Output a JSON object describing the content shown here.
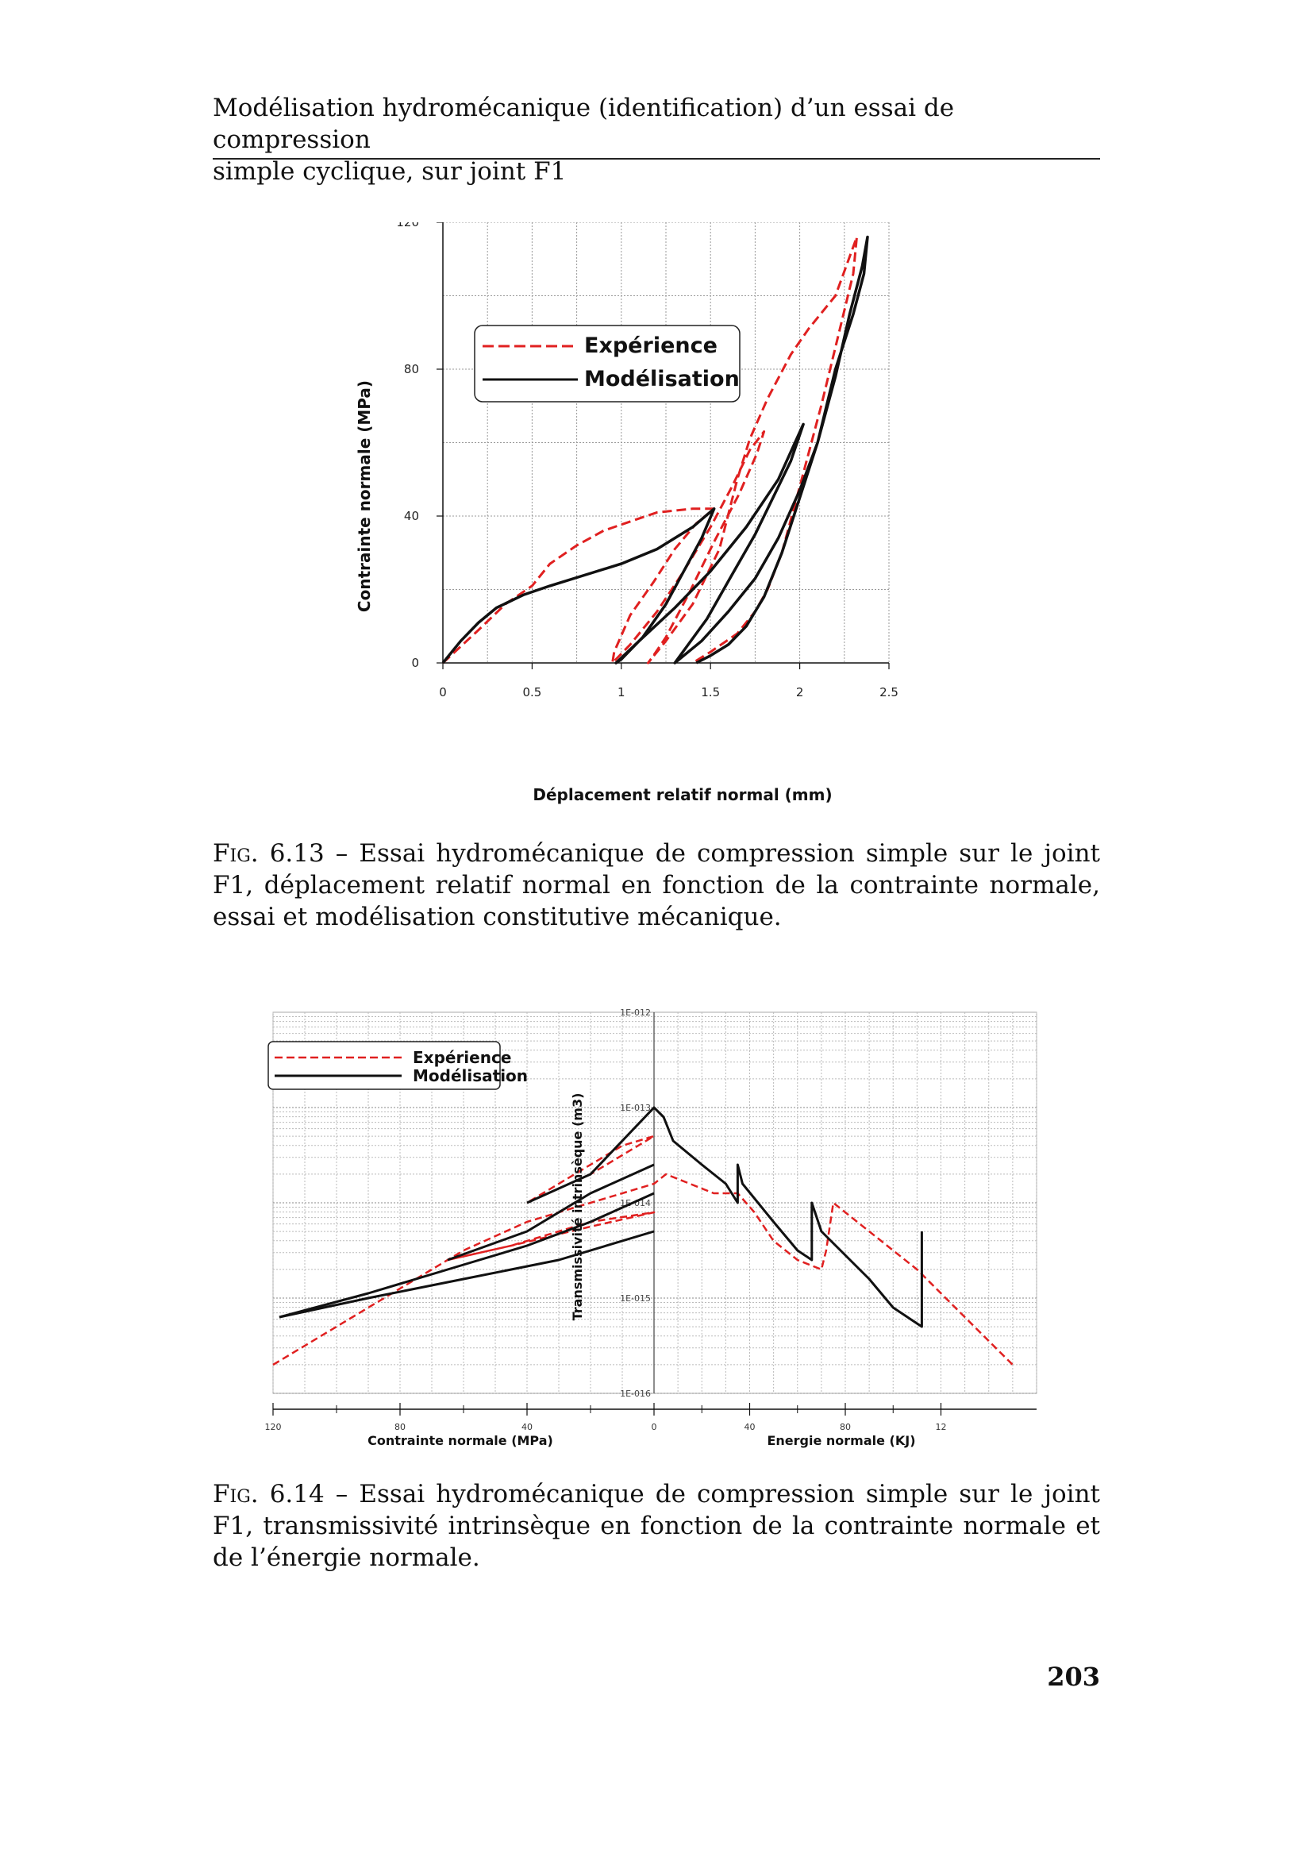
{
  "header": {
    "line1": "Modélisation hydromécanique (identification) d’un essai de compression",
    "line2": "simple cyclique, sur joint F1"
  },
  "figure_6_13": {
    "caption": {
      "label": "Fig. 6.13",
      "text": " – Essai hydromécanique de compression simple sur le joint F1, déplacement relatif normal en fonction de la contrainte normale, essai et modélisation constitutive mécanique."
    },
    "chart_data": {
      "type": "line",
      "xlabel": "Déplacement relatif normal  (mm)",
      "ylabel": "Contrainte normale (MPa)",
      "xlim": [
        0,
        2.5
      ],
      "ylim": [
        0,
        120
      ],
      "x_ticks": [
        "0",
        "0.5",
        "1",
        "1.5",
        "2",
        "2.5"
      ],
      "y_ticks": [
        "0",
        "40",
        "80",
        "120"
      ],
      "grid": true,
      "legend_position": "top-left",
      "series": [
        {
          "name": "Expérience",
          "color": "#e02020",
          "dash": "dashed",
          "points": [
            [
              0,
              0
            ],
            [
              0.2,
              9
            ],
            [
              0.35,
              16
            ],
            [
              0.5,
              21
            ],
            [
              0.6,
              27
            ],
            [
              0.75,
              32
            ],
            [
              0.9,
              36
            ],
            [
              1.05,
              38.5
            ],
            [
              1.2,
              41
            ],
            [
              1.4,
              42
            ],
            [
              1.52,
              42
            ],
            [
              1.42,
              38
            ],
            [
              1.3,
              31
            ],
            [
              1.18,
              22
            ],
            [
              1.05,
              13
            ],
            [
              0.96,
              3
            ],
            [
              0.95,
              0
            ],
            [
              1.05,
              5
            ],
            [
              1.2,
              14
            ],
            [
              1.35,
              25
            ],
            [
              1.5,
              37
            ],
            [
              1.62,
              48
            ],
            [
              1.72,
              58
            ],
            [
              1.8,
              63
            ],
            [
              1.76,
              57
            ],
            [
              1.66,
              46
            ],
            [
              1.52,
              33
            ],
            [
              1.38,
              19
            ],
            [
              1.25,
              7
            ],
            [
              1.18,
              2
            ],
            [
              1.15,
              0
            ],
            [
              1.25,
              6
            ],
            [
              1.4,
              16
            ],
            [
              1.55,
              31
            ],
            [
              1.65,
              50
            ],
            [
              1.72,
              61
            ],
            [
              1.82,
              72
            ],
            [
              1.95,
              84
            ],
            [
              2.05,
              91
            ],
            [
              2.2,
              100
            ],
            [
              2.32,
              116
            ],
            [
              2.3,
              106
            ],
            [
              2.22,
              90
            ],
            [
              2.12,
              70
            ],
            [
              2.0,
              48
            ],
            [
              1.9,
              30
            ],
            [
              1.82,
              20
            ],
            [
              1.75,
              14
            ],
            [
              1.65,
              8
            ],
            [
              1.5,
              3
            ],
            [
              1.4,
              0
            ]
          ]
        },
        {
          "name": "Modélisation",
          "color": "#111111",
          "dash": "solid",
          "points": [
            [
              0,
              0
            ],
            [
              0.1,
              6
            ],
            [
              0.2,
              11
            ],
            [
              0.3,
              15
            ],
            [
              0.45,
              18.5
            ],
            [
              0.6,
              21
            ],
            [
              0.8,
              24
            ],
            [
              1.0,
              27
            ],
            [
              1.2,
              31
            ],
            [
              1.4,
              37
            ],
            [
              1.52,
              42
            ],
            [
              1.45,
              34
            ],
            [
              1.35,
              25
            ],
            [
              1.25,
              16
            ],
            [
              1.12,
              7
            ],
            [
              1.0,
              1
            ],
            [
              0.97,
              0
            ],
            [
              1.1,
              6
            ],
            [
              1.3,
              15
            ],
            [
              1.5,
              25
            ],
            [
              1.7,
              37
            ],
            [
              1.88,
              50
            ],
            [
              2.02,
              65
            ],
            [
              1.95,
              55
            ],
            [
              1.85,
              45
            ],
            [
              1.75,
              35
            ],
            [
              1.62,
              24
            ],
            [
              1.48,
              12
            ],
            [
              1.36,
              4
            ],
            [
              1.3,
              0
            ],
            [
              1.45,
              6
            ],
            [
              1.6,
              14
            ],
            [
              1.75,
              23
            ],
            [
              1.88,
              34
            ],
            [
              2.0,
              47
            ],
            [
              2.1,
              60
            ],
            [
              2.2,
              78
            ],
            [
              2.28,
              95
            ],
            [
              2.35,
              108
            ],
            [
              2.38,
              116
            ],
            [
              2.36,
              106
            ],
            [
              2.3,
              95
            ],
            [
              2.2,
              80
            ],
            [
              2.1,
              60
            ],
            [
              2.0,
              45
            ],
            [
              1.9,
              30
            ],
            [
              1.8,
              18
            ],
            [
              1.7,
              10
            ],
            [
              1.6,
              5
            ],
            [
              1.5,
              2
            ],
            [
              1.42,
              0
            ]
          ]
        }
      ]
    }
  },
  "figure_6_14": {
    "caption": {
      "label": "Fig. 6.14",
      "text": " – Essai hydromécanique de compression simple sur le joint F1, transmissivité intrinsèque en fonction de la contrainte normale et de l’énergie normale."
    },
    "chart_data": {
      "type": "line",
      "ylabel": "Transmissivité intrinsèque (m3)",
      "left_xlabel": "Contrainte normale  (MPa)",
      "right_xlabel": "Energie normale  (KJ)",
      "left_x_range": [
        120,
        0
      ],
      "right_x_range": [
        0,
        160
      ],
      "y_scale": "log",
      "ylim": [
        "1E-016",
        "1E-012"
      ],
      "x_ticks": [
        "120",
        "80",
        "40",
        "0",
        "40",
        "80",
        "12"
      ],
      "y_ticks": [
        "1E-012",
        "1E-013",
        "1E-014",
        "1E-015",
        "1E-016"
      ],
      "grid": true,
      "legend_position": "top-left",
      "series": [
        {
          "name": "Expérience",
          "color": "#e02020",
          "dash": "dashed",
          "points": [
            [
              120,
              -15.7
            ],
            [
              90,
              -15.1
            ],
            [
              60,
              -14.5
            ],
            [
              40,
              -14.2
            ],
            [
              20,
              -14.0
            ],
            [
              0,
              -13.8
            ],
            [
              -5,
              -13.7
            ],
            [
              -15,
              -13.8
            ],
            [
              -25,
              -13.9
            ],
            [
              -35,
              -13.9
            ],
            [
              -42,
              -14.1
            ],
            [
              -50,
              -14.4
            ],
            [
              -60,
              -14.6
            ],
            [
              -70,
              -14.7
            ],
            [
              -72,
              -14.5
            ],
            [
              -75,
              -14.0
            ],
            [
              -90,
              -14.3
            ],
            [
              -110,
              -14.7
            ],
            [
              -130,
              -15.2
            ],
            [
              -150,
              -15.7
            ]
          ],
          "extra_paths": [
            [
              [
                40,
                -14.0
              ],
              [
                20,
                -13.7
              ],
              [
                0,
                -13.3
              ],
              [
                10,
                -13.4
              ],
              [
                25,
                -13.7
              ],
              [
                40,
                -14.0
              ]
            ],
            [
              [
                65,
                -14.6
              ],
              [
                45,
                -14.45
              ],
              [
                20,
                -14.2
              ],
              [
                0,
                -14.1
              ],
              [
                20,
                -14.25
              ],
              [
                45,
                -14.45
              ],
              [
                65,
                -14.6
              ]
            ]
          ]
        },
        {
          "name": "Modélisation",
          "color": "#111111",
          "dash": "solid",
          "points": [
            [
              118,
              -15.2
            ],
            [
              90,
              -15.0
            ],
            [
              60,
              -14.8
            ],
            [
              30,
              -14.6
            ],
            [
              0,
              -14.3
            ]
          ],
          "extra_paths": [
            [
              [
                118,
                -15.2
              ],
              [
                90,
                -14.95
              ],
              [
                60,
                -14.65
              ],
              [
                40,
                -14.45
              ],
              [
                20,
                -14.2
              ],
              [
                0,
                -13.9
              ]
            ],
            [
              [
                65,
                -14.6
              ],
              [
                40,
                -14.3
              ],
              [
                20,
                -13.9
              ],
              [
                0,
                -13.6
              ]
            ],
            [
              [
                40,
                -14.0
              ],
              [
                20,
                -13.7
              ],
              [
                0,
                -13.0
              ],
              [
                -4,
                -13.1
              ],
              [
                -8,
                -13.35
              ],
              [
                -20,
                -13.6
              ],
              [
                -30,
                -13.8
              ],
              [
                -35,
                -14.0
              ],
              [
                -35,
                -13.6
              ],
              [
                -37,
                -13.8
              ],
              [
                -50,
                -14.2
              ],
              [
                -60,
                -14.5
              ],
              [
                -66,
                -14.6
              ],
              [
                -66,
                -14.0
              ],
              [
                -70,
                -14.3
              ],
              [
                -90,
                -14.8
              ],
              [
                -100,
                -15.1
              ],
              [
                -112,
                -15.3
              ],
              [
                -112,
                -14.3
              ]
            ]
          ]
        }
      ]
    }
  },
  "page_number": "203"
}
